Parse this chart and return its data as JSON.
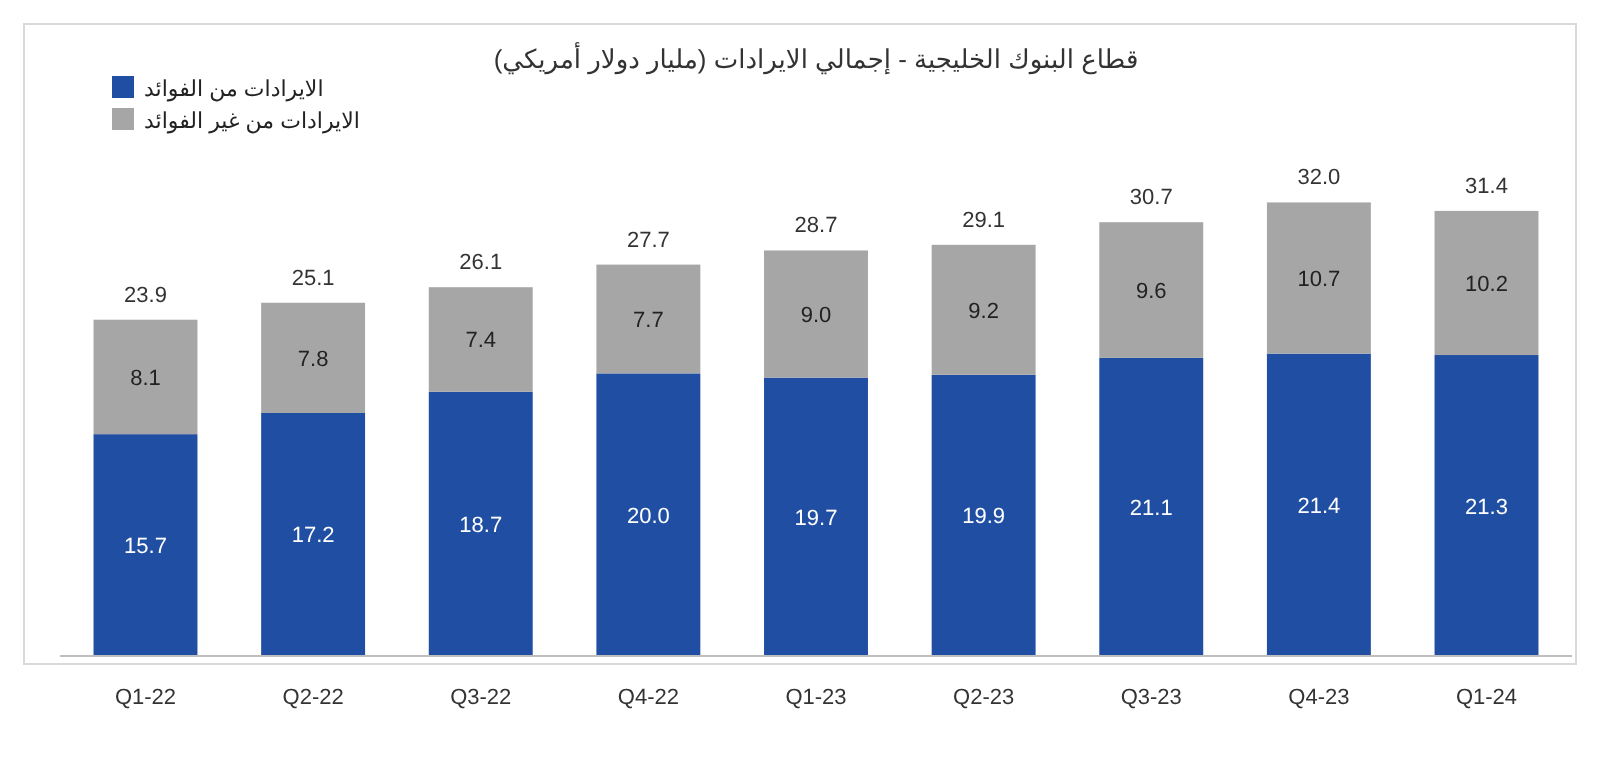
{
  "chart_data": {
    "type": "bar",
    "title": "قطاع البنوك الخليجية - إجمالي الايرادات (مليار دولار أمريكي)",
    "categories": [
      "Q1-22",
      "Q2-22",
      "Q3-22",
      "Q4-22",
      "Q1-23",
      "Q2-23",
      "Q3-23",
      "Q4-23",
      "Q1-24"
    ],
    "stacked": true,
    "series": [
      {
        "name": "الايرادات من الفوائد",
        "color": "#1f4ea3",
        "values": [
          15.7,
          17.2,
          18.7,
          20.0,
          19.7,
          19.9,
          21.1,
          21.4,
          21.3
        ],
        "value_labels": [
          "15.7",
          "17.2",
          "18.7",
          "20.0",
          "19.7",
          "19.9",
          "21.1",
          "21.4",
          "21.3"
        ]
      },
      {
        "name": "الايرادات من غير الفوائد",
        "color": "#a6a6a6",
        "values": [
          8.1,
          7.8,
          7.4,
          7.7,
          9.0,
          9.2,
          9.6,
          10.7,
          10.2
        ],
        "value_labels": [
          "8.1",
          "7.8",
          "7.4",
          "7.7",
          "9.0",
          "9.2",
          "9.6",
          "10.7",
          "10.2"
        ]
      }
    ],
    "totals": [
      "23.9",
      "25.1",
      "26.1",
      "27.7",
      "28.7",
      "29.1",
      "30.7",
      "32.0",
      "31.4"
    ],
    "legend": "top left"
  }
}
